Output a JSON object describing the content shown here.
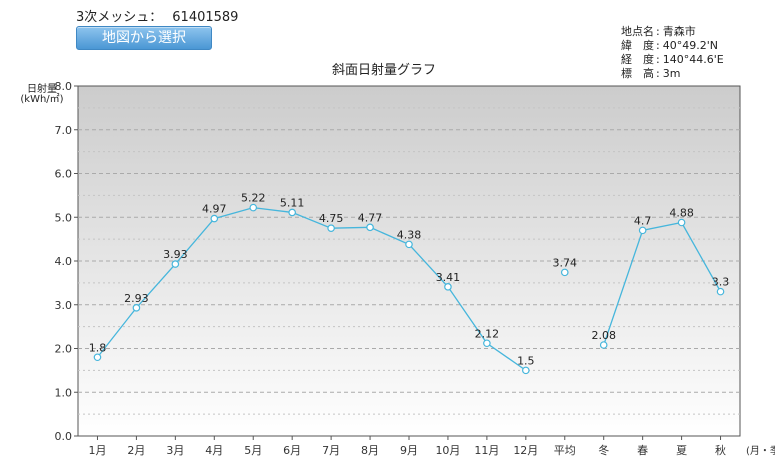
{
  "header": {
    "mesh_label": "3次メッシュ：",
    "mesh_code": "61401589",
    "select_from_map_label": "地図から選択"
  },
  "location": {
    "rows": [
      {
        "key": "地点名",
        "value": "青森市"
      },
      {
        "key": "緯　度",
        "value": "40°49.2'N"
      },
      {
        "key": "経　度",
        "value": "140°44.6'E"
      },
      {
        "key": "標　高",
        "value": "3m"
      }
    ]
  },
  "chart_data": {
    "type": "line",
    "title": "斜面日射量グラフ",
    "ylabel": "日射量\n(kWh/㎡)",
    "xlabel": "(月・季)",
    "ylim": [
      0,
      8
    ],
    "yticks": [
      "0.0",
      "1.0",
      "2.0",
      "3.0",
      "4.0",
      "5.0",
      "6.0",
      "7.0",
      "8.0"
    ],
    "grid": true,
    "categories": [
      "1月",
      "2月",
      "3月",
      "4月",
      "5月",
      "6月",
      "7月",
      "8月",
      "9月",
      "10月",
      "11月",
      "12月",
      "平均",
      "冬",
      "春",
      "夏",
      "秋"
    ],
    "values": [
      1.8,
      2.93,
      3.93,
      4.97,
      5.22,
      5.11,
      4.75,
      4.77,
      4.38,
      3.41,
      2.12,
      1.5,
      3.74,
      2.08,
      4.7,
      4.88,
      3.3
    ],
    "value_labels": [
      "1.8",
      "2.93",
      "3.93",
      "4.97",
      "5.22",
      "5.11",
      "4.75",
      "4.77",
      "4.38",
      "3.41",
      "2.12",
      "1.5",
      "3.74",
      "2.08",
      "4.7",
      "4.88",
      "3.3"
    ],
    "line_segments": [
      [
        0,
        11
      ],
      [
        13,
        16
      ]
    ],
    "colors": {
      "line": "#46b6dc",
      "plot_top": "#cccccc",
      "plot_bottom": "#ffffff",
      "grid": "#aaaaaa"
    }
  }
}
